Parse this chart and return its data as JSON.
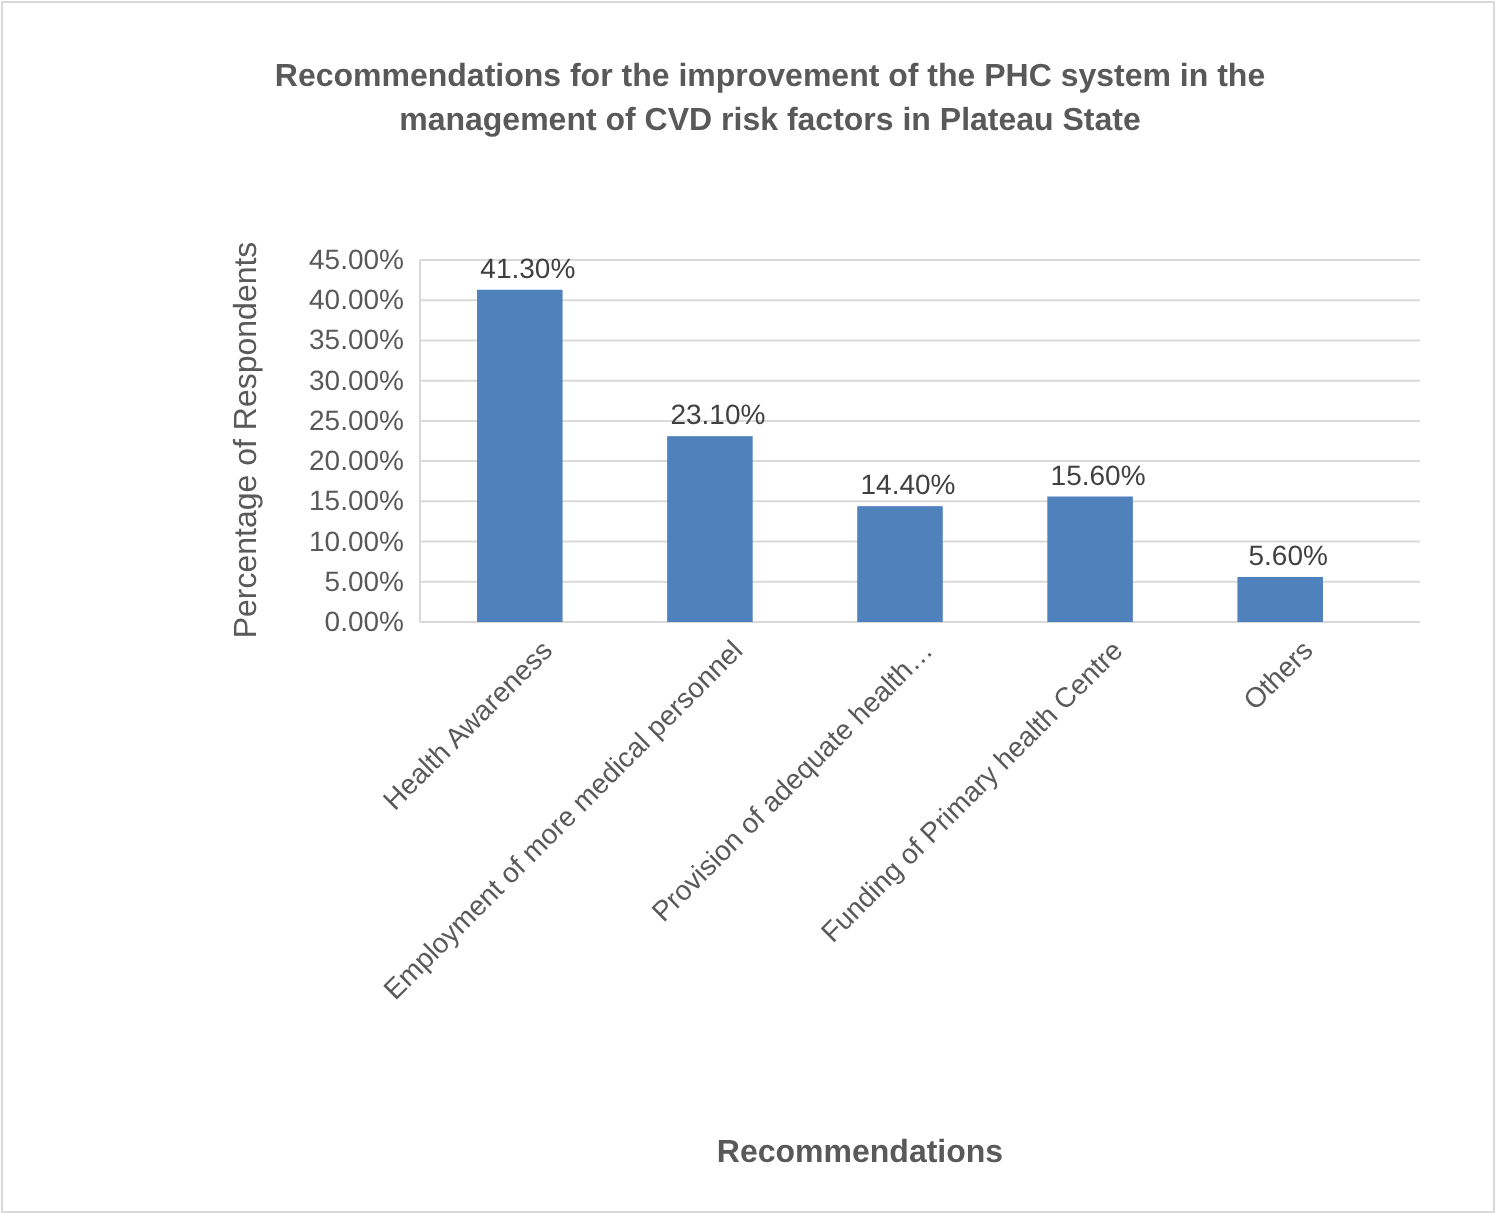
{
  "chart_data": {
    "type": "bar",
    "title": "Recommendations for the improvement of the PHC system in the management of CVD risk factors in Plateau State",
    "xlabel": "Recommendations",
    "ylabel": "Percentage of Respondents",
    "categories": [
      "Health Awareness",
      "Employment of more medical personnel",
      "Provision of adequate health…",
      "Funding of Primary health Centre",
      "Others"
    ],
    "values": [
      41.3,
      23.1,
      14.4,
      15.6,
      5.6
    ],
    "value_labels": [
      "41.30%",
      "23.10%",
      "14.40%",
      "15.60%",
      "5.60%"
    ],
    "color": "#4f81bd",
    "ylim": [
      0,
      45
    ],
    "yticks": [
      {
        "value": 0,
        "label": "0.00%"
      },
      {
        "value": 5,
        "label": "5.00%"
      },
      {
        "value": 10,
        "label": "10.00%"
      },
      {
        "value": 15,
        "label": "15.00%"
      },
      {
        "value": 20,
        "label": "20.00%"
      },
      {
        "value": 25,
        "label": "25.00%"
      },
      {
        "value": 30,
        "label": "30.00%"
      },
      {
        "value": 35,
        "label": "35.00%"
      },
      {
        "value": 40,
        "label": "40.00%"
      },
      {
        "value": 45,
        "label": "45.00%"
      }
    ],
    "grid": true
  }
}
